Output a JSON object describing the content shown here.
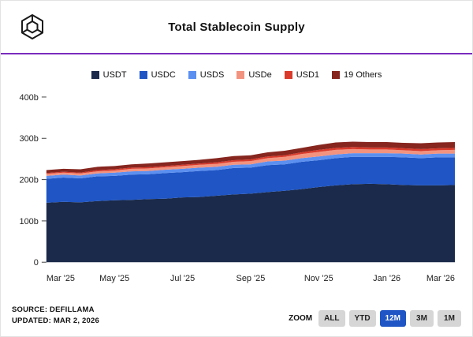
{
  "header": {
    "title": "Total Stablecoin Supply",
    "logo_icon": "hexagon-cube-logo"
  },
  "colors": {
    "divider_accent": "#7b2cbf",
    "zoom_selected_bg": "#1f55c4",
    "axis_text": "#222222"
  },
  "chart_data": {
    "type": "area",
    "stacked": true,
    "title": "Total Stablecoin Supply",
    "xlabel": "",
    "ylabel": "",
    "ylim": [
      0,
      400
    ],
    "grid": false,
    "legend_position": "top",
    "y_ticks": [
      {
        "v": 0,
        "label": "0"
      },
      {
        "v": 100,
        "label": "100b"
      },
      {
        "v": 200,
        "label": "200b"
      },
      {
        "v": 300,
        "label": "300b"
      },
      {
        "v": 400,
        "label": "400b"
      }
    ],
    "x_tick_labels": [
      "Mar '25",
      "May '25",
      "Jul '25",
      "Sep '25",
      "Nov '25",
      "Jan '26",
      "Mar '26"
    ],
    "x_tick_indices": [
      0,
      4,
      8,
      12,
      16,
      20,
      24
    ],
    "series": [
      {
        "name": "USDT",
        "color": "#1b2a4a",
        "values": [
          144,
          146,
          145,
          148,
          150,
          151,
          153,
          154,
          157,
          158,
          161,
          164,
          166,
          170,
          173,
          177,
          182,
          186,
          189,
          190,
          189,
          187,
          186,
          186,
          187
        ]
      },
      {
        "name": "USDC",
        "color": "#1f55c4",
        "values": [
          58,
          59,
          58,
          60,
          59,
          61,
          60,
          62,
          61,
          63,
          62,
          64,
          63,
          65,
          64,
          66,
          65,
          66,
          66,
          65,
          66,
          67,
          66,
          68,
          67
        ]
      },
      {
        "name": "USDS",
        "color": "#5b8ff0",
        "values": [
          7,
          7,
          7,
          7,
          8,
          8,
          8,
          8,
          8,
          8,
          8,
          8,
          8,
          9,
          9,
          9,
          9,
          9,
          9,
          9,
          9,
          9,
          9,
          9,
          9
        ]
      },
      {
        "name": "USDe",
        "color": "#f2937f",
        "values": [
          5,
          5,
          5,
          5,
          5,
          6,
          6,
          6,
          7,
          7,
          7,
          7,
          8,
          8,
          9,
          10,
          11,
          11,
          10,
          9,
          9,
          8,
          8,
          8,
          9
        ]
      },
      {
        "name": "USD1",
        "color": "#d93a2b",
        "values": [
          2,
          2,
          2,
          3,
          3,
          3,
          3,
          3,
          3,
          3,
          4,
          4,
          4,
          4,
          4,
          4,
          5,
          5,
          5,
          5,
          5,
          5,
          5,
          5,
          5
        ]
      },
      {
        "name": "19 Others",
        "color": "#86261f",
        "values": [
          7,
          7,
          8,
          8,
          8,
          8,
          9,
          9,
          9,
          9,
          10,
          10,
          10,
          10,
          11,
          11,
          12,
          13,
          13,
          13,
          13,
          13,
          14,
          14,
          14
        ]
      }
    ]
  },
  "footer": {
    "source_line1": "SOURCE: DEFILLAMA",
    "source_line2": "UPDATED: MAR 2, 2026",
    "zoom_label": "ZOOM",
    "zoom_options": [
      {
        "label": "ALL",
        "selected": false
      },
      {
        "label": "YTD",
        "selected": false
      },
      {
        "label": "12M",
        "selected": true
      },
      {
        "label": "3M",
        "selected": false
      },
      {
        "label": "1M",
        "selected": false
      }
    ]
  }
}
